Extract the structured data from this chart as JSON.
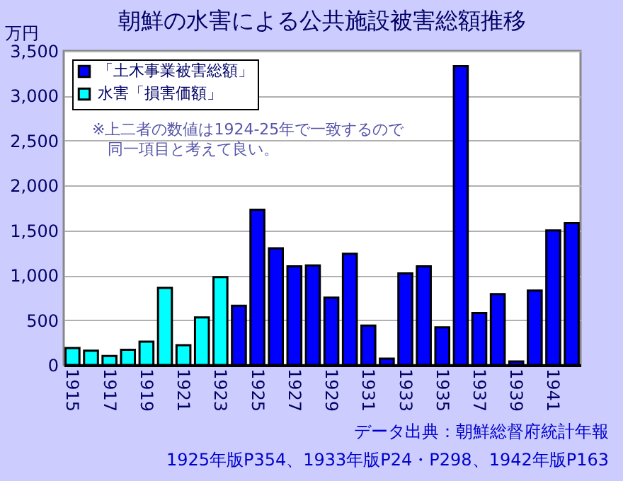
{
  "chart_data": {
    "type": "bar",
    "title": "朝鮮の水害による公共施設被害総額推移",
    "ylabel": "万円",
    "categories": [
      "1915",
      null,
      "1917",
      null,
      "1919",
      null,
      "1921",
      null,
      "1923",
      null,
      "1925",
      null,
      "1927",
      null,
      "1929",
      null,
      "1931",
      null,
      "1933",
      null,
      "1935",
      null,
      "1937",
      null,
      "1939",
      null,
      "1941",
      null
    ],
    "series": [
      {
        "name": "「土木事業被害総額」",
        "color": "#0000ff",
        "values": [
          null,
          null,
          null,
          null,
          null,
          null,
          null,
          null,
          null,
          660,
          1730,
          1300,
          1100,
          1110,
          750,
          1240,
          440,
          70,
          1020,
          1100,
          420,
          3330,
          580,
          790,
          40,
          830,
          1500,
          1580
        ]
      },
      {
        "name": "水害「損害価額」",
        "color": "#00ffff",
        "values": [
          190,
          160,
          100,
          170,
          260,
          860,
          220,
          530,
          980,
          null,
          null,
          null,
          null,
          null,
          null,
          null,
          null,
          null,
          null,
          null,
          null,
          null,
          null,
          null,
          null,
          null,
          null,
          null
        ]
      }
    ],
    "ylim": [
      0,
      3500
    ],
    "yticks": [
      {
        "value": 0,
        "label": "0"
      },
      {
        "value": 500,
        "label": "500"
      },
      {
        "value": 1000,
        "label": "1,000"
      },
      {
        "value": 1500,
        "label": "1,500"
      },
      {
        "value": 2000,
        "label": "2,000"
      },
      {
        "value": 2500,
        "label": "2,500"
      },
      {
        "value": 3000,
        "label": "3,000"
      },
      {
        "value": 3500,
        "label": "3,500"
      }
    ],
    "grid": "y",
    "legend": "top left",
    "annotations": [
      "※上二者の数値は1924-25年で一致するので",
      "同一項目と考えて良い。",
      "データ出典：朝鮮総督府統計年報",
      "1925年版P354、1933年版P24・P298、1942年版P163"
    ]
  }
}
